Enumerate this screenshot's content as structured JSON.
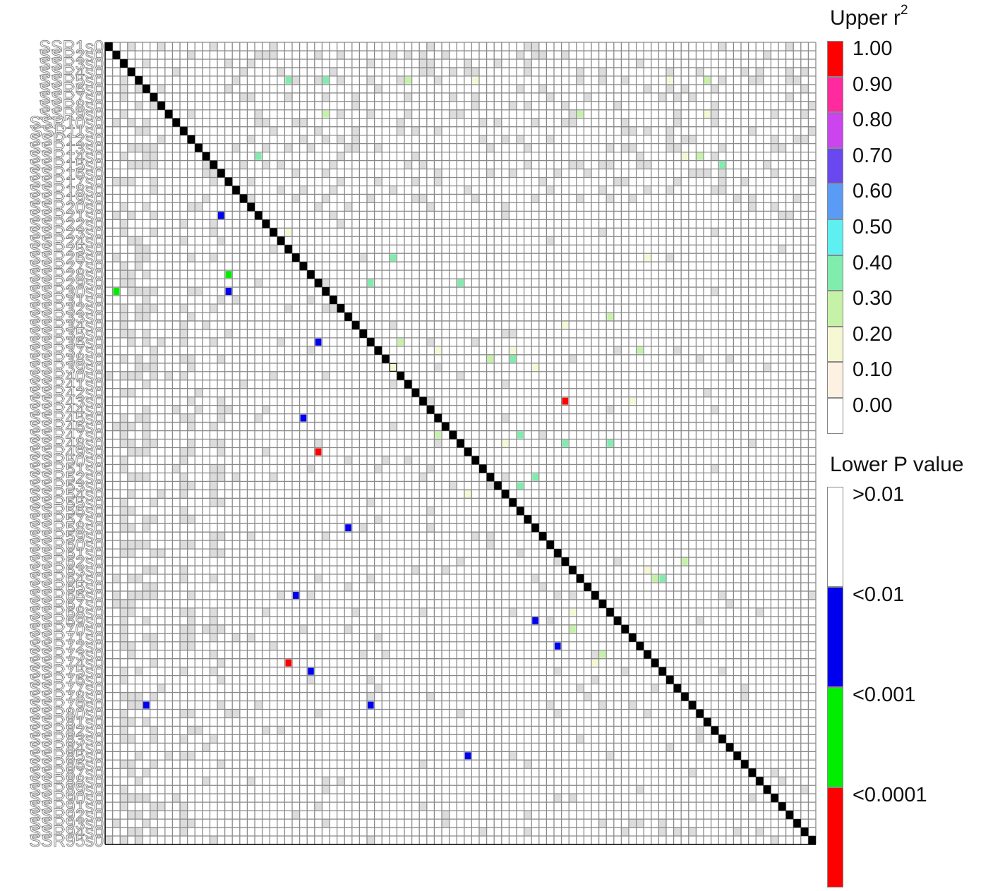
{
  "chart_data": {
    "type": "heatmap",
    "loci": [
      "SSR1s0",
      "SSR2s0",
      "SSR3s0",
      "SSR4s0",
      "SSR5s0",
      "SSR6s0",
      "SSR7s0",
      "SSR8s0",
      "SSR9s0",
      "SSR10s0",
      "SSR11s0",
      "SSR12s0",
      "SSR13s0",
      "SSR14s0",
      "SSR15s0",
      "SSR16s0",
      "SSR17s0",
      "SSR18s0",
      "SSR19s0",
      "SSR20s0",
      "SSR21s0",
      "SSR22s0",
      "SSR23s0",
      "SSR24s0",
      "SSR25s0",
      "SSR26s0",
      "SSR27s0",
      "SSR28s0",
      "SSR29s0",
      "SSR30s0",
      "SSR31s0",
      "SSR32s0",
      "SSR33s0",
      "SSR34s0",
      "SSR35s0",
      "SSR36s0",
      "SSR37s0",
      "SSR38s0",
      "SSR39s0",
      "SSR40s0",
      "SSR41s0",
      "SSR42s0",
      "SSR43s0",
      "SSR44s0",
      "SSR45s0",
      "SSR46s0",
      "SSR47s0",
      "SSR48s0",
      "SSR49s0",
      "SSR50s0",
      "SSR51s0",
      "SSR52s0",
      "SSR53s0",
      "SSR54s0",
      "SSR55s0",
      "SSR56s0",
      "SSR57s0",
      "SSR58s0",
      "SSR59s0",
      "SSR60s0",
      "SSR61s0",
      "SSR62s0",
      "SSR63s0",
      "SSR64s0",
      "SSR65s0",
      "SSR66s0",
      "SSR67s0",
      "SSR68s0",
      "SSR69s0",
      "SSR70s0",
      "SSR71s0",
      "SSR72s0",
      "SSR73s0",
      "SSR74s0",
      "SSR75s0",
      "SSR76s0",
      "SSR77s0",
      "SSR78s0",
      "SSR79s0",
      "SSR80s0",
      "SSR81s0",
      "SSR82s0",
      "SSR83s0",
      "SSR84s0",
      "SSR85s0",
      "SSR86s0",
      "SSR87s0",
      "SSR88s0",
      "SSR89s0",
      "SSR90s0",
      "SSR91s0",
      "SSR92s0",
      "SSR93s0",
      "SSR94s0",
      "SSR95s0"
    ],
    "upper_r2_cells": [
      {
        "row": 4,
        "col": 24,
        "r2": 0.45
      },
      {
        "row": 4,
        "col": 29,
        "r2": 0.45
      },
      {
        "row": 4,
        "col": 40,
        "r2": 0.35
      },
      {
        "row": 4,
        "col": 80,
        "r2": 0.3
      },
      {
        "row": 4,
        "col": 75,
        "r2": 0.25
      },
      {
        "row": 4,
        "col": 49,
        "r2": 0.25
      },
      {
        "row": 8,
        "col": 29,
        "r2": 0.35
      },
      {
        "row": 8,
        "col": 63,
        "r2": 0.3
      },
      {
        "row": 8,
        "col": 80,
        "r2": 0.25
      },
      {
        "row": 13,
        "col": 20,
        "r2": 0.45
      },
      {
        "row": 13,
        "col": 77,
        "r2": 0.25
      },
      {
        "row": 13,
        "col": 79,
        "r2": 0.3
      },
      {
        "row": 14,
        "col": 82,
        "r2": 0.45
      },
      {
        "row": 22,
        "col": 24,
        "r2": 0.25
      },
      {
        "row": 25,
        "col": 38,
        "r2": 0.45
      },
      {
        "row": 25,
        "col": 72,
        "r2": 0.25
      },
      {
        "row": 28,
        "col": 47,
        "r2": 0.45
      },
      {
        "row": 28,
        "col": 35,
        "r2": 0.45
      },
      {
        "row": 32,
        "col": 67,
        "r2": 0.35
      },
      {
        "row": 33,
        "col": 61,
        "r2": 0.25
      },
      {
        "row": 35,
        "col": 39,
        "r2": 0.35
      },
      {
        "row": 36,
        "col": 44,
        "r2": 0.25
      },
      {
        "row": 36,
        "col": 54,
        "r2": 0.25
      },
      {
        "row": 36,
        "col": 71,
        "r2": 0.35
      },
      {
        "row": 37,
        "col": 51,
        "r2": 0.35
      },
      {
        "row": 37,
        "col": 54,
        "r2": 0.45
      },
      {
        "row": 38,
        "col": 38,
        "r2": 0.25
      },
      {
        "row": 38,
        "col": 57,
        "r2": 0.25
      },
      {
        "row": 42,
        "col": 61,
        "r2": 1.0
      },
      {
        "row": 42,
        "col": 70,
        "r2": 0.25
      },
      {
        "row": 46,
        "col": 44,
        "r2": 0.3
      },
      {
        "row": 46,
        "col": 55,
        "r2": 0.45
      },
      {
        "row": 47,
        "col": 61,
        "r2": 0.45
      },
      {
        "row": 47,
        "col": 67,
        "r2": 0.45
      },
      {
        "row": 47,
        "col": 53,
        "r2": 0.25
      },
      {
        "row": 51,
        "col": 57,
        "r2": 0.4
      },
      {
        "row": 52,
        "col": 55,
        "r2": 0.45
      },
      {
        "row": 53,
        "col": 48,
        "r2": 0.25
      },
      {
        "row": 61,
        "col": 77,
        "r2": 0.3
      },
      {
        "row": 62,
        "col": 72,
        "r2": 0.25
      },
      {
        "row": 63,
        "col": 74,
        "r2": 0.45
      },
      {
        "row": 63,
        "col": 73,
        "r2": 0.3
      },
      {
        "row": 67,
        "col": 62,
        "r2": 0.25
      },
      {
        "row": 69,
        "col": 62,
        "r2": 0.3
      },
      {
        "row": 72,
        "col": 66,
        "r2": 0.35
      },
      {
        "row": 73,
        "col": 65,
        "r2": 0.25
      }
    ],
    "lower_p_cells": [
      {
        "row": 20,
        "col": 15,
        "p": "<0.01"
      },
      {
        "row": 27,
        "col": 16,
        "p": "<0.001"
      },
      {
        "row": 29,
        "col": 16,
        "p": "<0.01"
      },
      {
        "row": 29,
        "col": 1,
        "p": "<0.001"
      },
      {
        "row": 35,
        "col": 28,
        "p": "<0.01"
      },
      {
        "row": 44,
        "col": 26,
        "p": "<0.01"
      },
      {
        "row": 48,
        "col": 28,
        "p": "<0.0001"
      },
      {
        "row": 57,
        "col": 32,
        "p": "<0.01"
      },
      {
        "row": 65,
        "col": 25,
        "p": "<0.01"
      },
      {
        "row": 68,
        "col": 57,
        "p": "<0.01"
      },
      {
        "row": 71,
        "col": 60,
        "p": "<0.01"
      },
      {
        "row": 73,
        "col": 24,
        "p": "<0.0001"
      },
      {
        "row": 74,
        "col": 27,
        "p": "<0.01"
      },
      {
        "row": 78,
        "col": 5,
        "p": "<0.01"
      },
      {
        "row": 78,
        "col": 35,
        "p": "<0.01"
      },
      {
        "row": 84,
        "col": 48,
        "p": "<0.01"
      }
    ],
    "upper_legend": {
      "title": "Upper r",
      "title_sup": "2",
      "bins": [
        {
          "label": "1.00",
          "color": "#ff0000"
        },
        {
          "label": "0.90",
          "color": "#ff2a9e"
        },
        {
          "label": "0.80",
          "color": "#cc44ee"
        },
        {
          "label": "0.70",
          "color": "#6a48f0"
        },
        {
          "label": "0.60",
          "color": "#5a9cf5"
        },
        {
          "label": "0.50",
          "color": "#5ef0f0"
        },
        {
          "label": "0.40",
          "color": "#80ecae"
        },
        {
          "label": "0.30",
          "color": "#c6f2a8"
        },
        {
          "label": "0.20",
          "color": "#f5f8d2"
        },
        {
          "label": "0.10",
          "color": "#fdf1e2"
        },
        {
          "label": "0.00",
          "color": "#ffffff"
        }
      ]
    },
    "lower_legend": {
      "title": "Lower P value",
      "bins": [
        {
          "label": ">0.01",
          "color": "#ffffff"
        },
        {
          "label": "<0.01",
          "color": "#0000ee"
        },
        {
          "label": "<0.001",
          "color": "#00ee00"
        },
        {
          "label": "<0.0001",
          "color": "#ff0000"
        }
      ]
    },
    "colors": {
      "grid": "#8a8a8a",
      "diagonal": "#000000",
      "faint_gray": "#dcdcdc"
    }
  }
}
